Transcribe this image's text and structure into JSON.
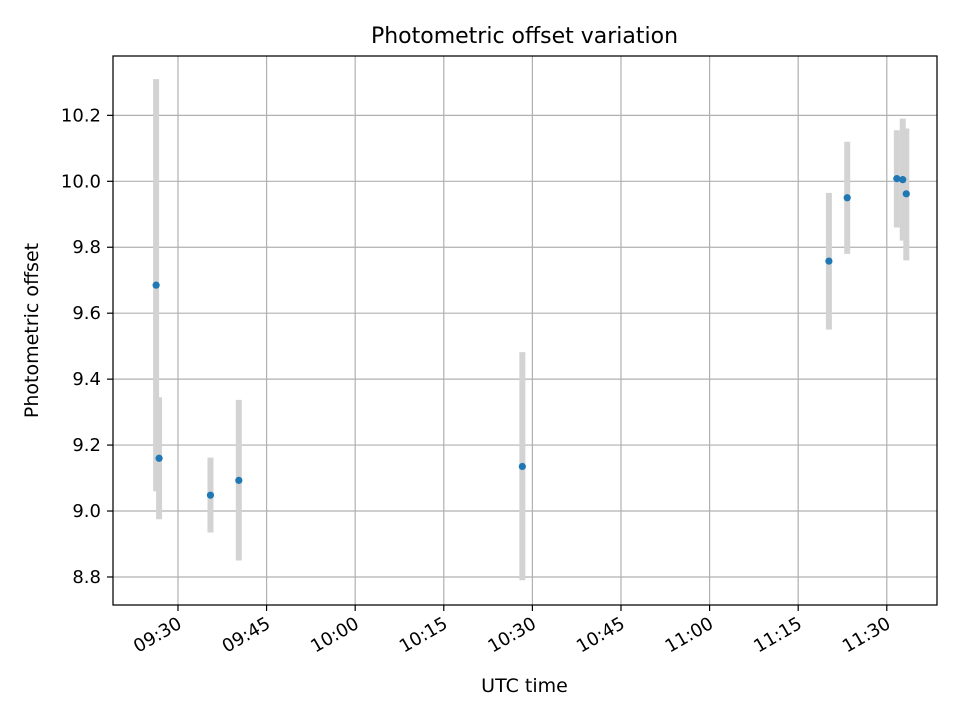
{
  "chart_data": {
    "type": "scatter",
    "title": "Photometric offset variation",
    "xlabel": "UTC time",
    "ylabel": "Photometric offset",
    "x_ticks": [
      "09:30",
      "09:45",
      "10:00",
      "10:15",
      "10:30",
      "10:45",
      "11:00",
      "11:15",
      "11:30"
    ],
    "x_tick_minutes": [
      570,
      585,
      600,
      615,
      630,
      645,
      660,
      675,
      690
    ],
    "xlim_minutes": [
      559,
      698.5
    ],
    "y_ticks": [
      "8.8",
      "9.0",
      "9.2",
      "9.4",
      "9.6",
      "9.8",
      "10.0",
      "10.2"
    ],
    "y_tick_values": [
      8.8,
      9.0,
      9.2,
      9.4,
      9.6,
      9.8,
      10.0,
      10.2
    ],
    "ylim": [
      8.715,
      10.38
    ],
    "grid": true,
    "colors": {
      "marker": "#1f77b4",
      "errorbar": "#d3d3d3",
      "grid": "#b0b0b0"
    },
    "points": [
      {
        "time_min": 566.3,
        "y": 9.685,
        "err_low": 9.06,
        "err_high": 10.31
      },
      {
        "time_min": 566.8,
        "y": 9.16,
        "err_low": 8.975,
        "err_high": 9.345
      },
      {
        "time_min": 575.5,
        "y": 9.048,
        "err_low": 8.935,
        "err_high": 9.162
      },
      {
        "time_min": 580.3,
        "y": 9.093,
        "err_low": 8.85,
        "err_high": 9.337
      },
      {
        "time_min": 628.3,
        "y": 9.135,
        "err_low": 8.79,
        "err_high": 9.482
      },
      {
        "time_min": 680.2,
        "y": 9.758,
        "err_low": 9.55,
        "err_high": 9.965
      },
      {
        "time_min": 683.3,
        "y": 9.95,
        "err_low": 9.78,
        "err_high": 10.12
      },
      {
        "time_min": 691.7,
        "y": 10.008,
        "err_low": 9.86,
        "err_high": 10.155
      },
      {
        "time_min": 692.7,
        "y": 10.005,
        "err_low": 9.82,
        "err_high": 10.19
      },
      {
        "time_min": 693.3,
        "y": 9.962,
        "err_low": 9.76,
        "err_high": 10.16
      }
    ]
  }
}
